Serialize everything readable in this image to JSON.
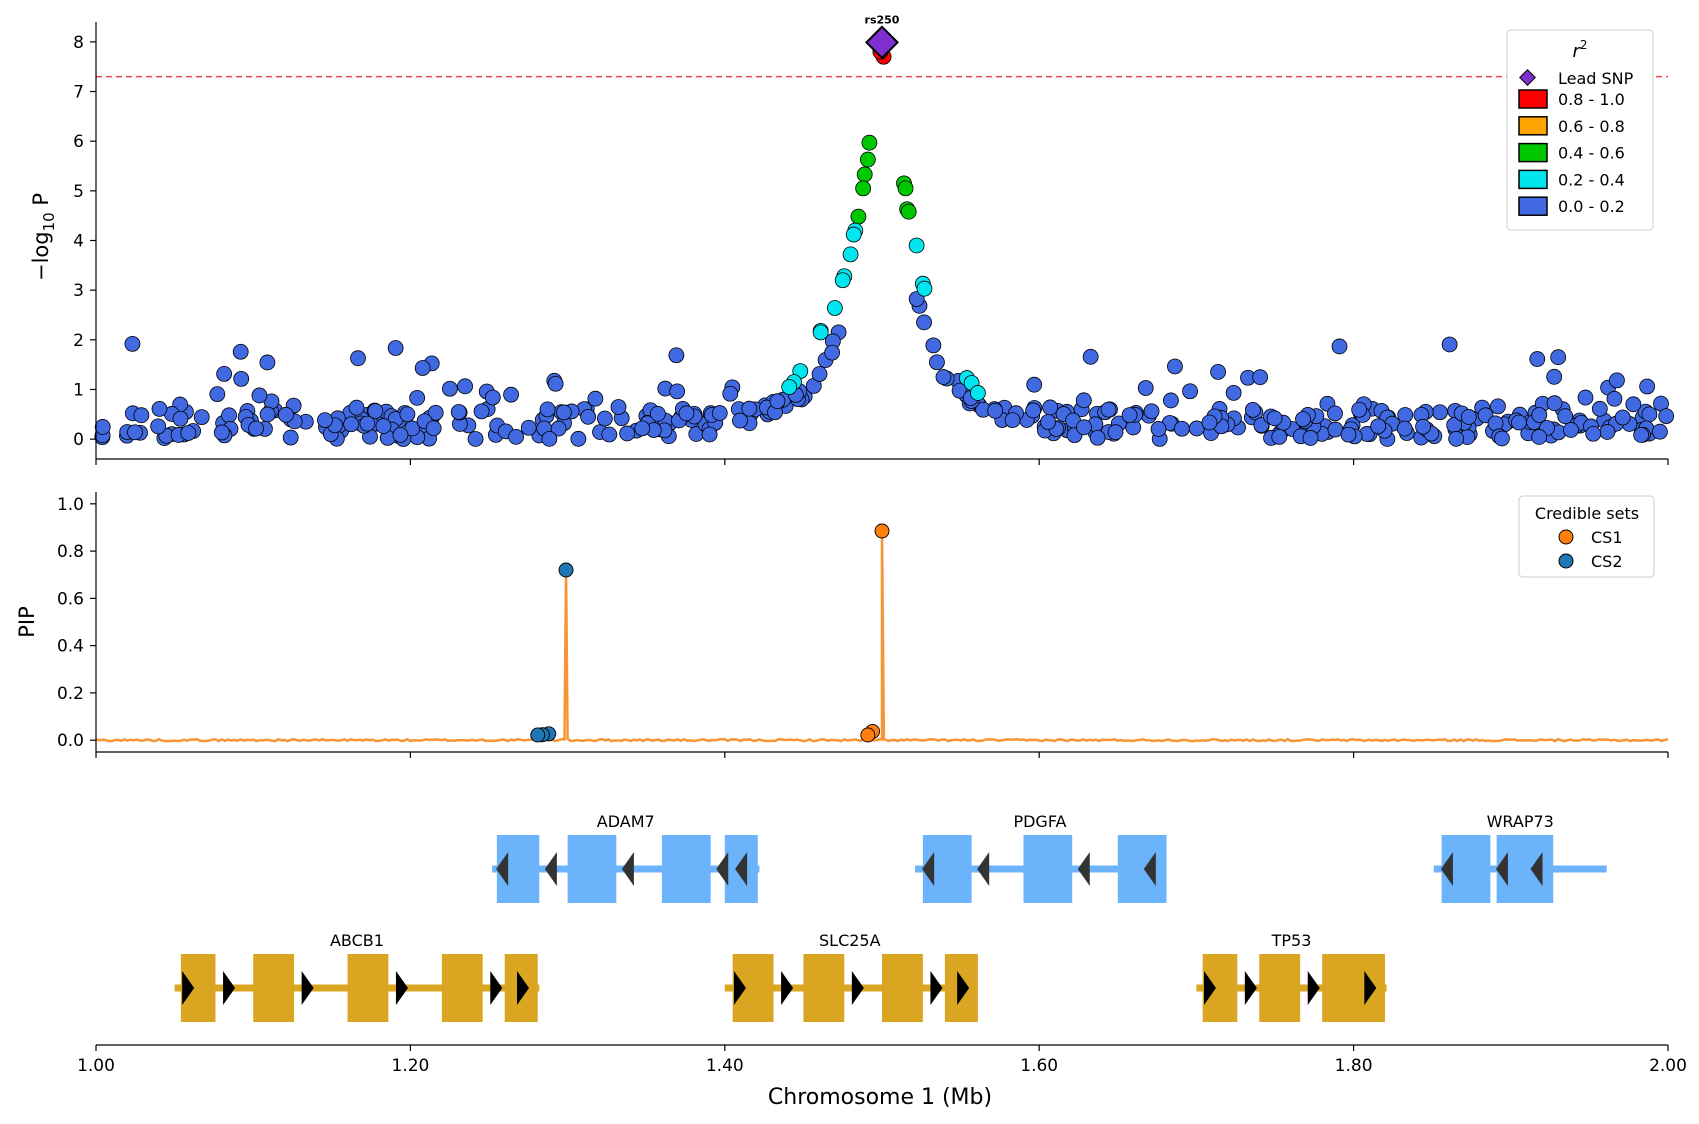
{
  "chart_data": {
    "panels": [
      {
        "type": "scatter",
        "id": "association",
        "ylabel_base": "−log",
        "ylabel_sub": "10",
        "ylabel_rest": " P",
        "ylim": [
          -0.4,
          8.4
        ],
        "yticks": [
          0,
          1,
          2,
          3,
          4,
          5,
          6,
          7,
          8
        ],
        "significance_threshold": 7.3,
        "threshold_color": "#e8474b",
        "lead_snp": {
          "label": "rs250",
          "x": 1.5,
          "y": 7.99,
          "color": "#7e2fd0"
        },
        "legend": {
          "title_base": "r",
          "title_sup": "2",
          "lead_label": "Lead SNP",
          "bins": [
            {
              "label": "0.8 - 1.0",
              "color": "#ff0000"
            },
            {
              "label": "0.6 - 0.8",
              "color": "#ffa500"
            },
            {
              "label": "0.4 - 0.6",
              "color": "#00c800"
            },
            {
              "label": "0.2 - 0.4",
              "color": "#00e5ee"
            },
            {
              "label": "0.0 - 0.2",
              "color": "#4169e1"
            }
          ]
        },
        "peak_points": [
          {
            "x": 1.501,
            "y": 7.7,
            "r2": "0.8-1.0"
          },
          {
            "x": 1.499,
            "y": 7.8,
            "r2": "0.8-1.0"
          },
          {
            "x": 1.492,
            "y": 5.97,
            "r2": "0.4-0.6"
          },
          {
            "x": 1.491,
            "y": 5.63,
            "r2": "0.4-0.6"
          },
          {
            "x": 1.489,
            "y": 5.33,
            "r2": "0.4-0.6"
          },
          {
            "x": 1.488,
            "y": 5.05,
            "r2": "0.4-0.6"
          },
          {
            "x": 1.485,
            "y": 4.48,
            "r2": "0.4-0.6"
          },
          {
            "x": 1.514,
            "y": 5.15,
            "r2": "0.4-0.6"
          },
          {
            "x": 1.515,
            "y": 5.05,
            "r2": "0.4-0.6"
          },
          {
            "x": 1.516,
            "y": 4.63,
            "r2": "0.4-0.6"
          },
          {
            "x": 1.517,
            "y": 4.58,
            "r2": "0.4-0.6"
          },
          {
            "x": 1.483,
            "y": 4.2,
            "r2": "0.2-0.4"
          },
          {
            "x": 1.482,
            "y": 4.12,
            "r2": "0.2-0.4"
          },
          {
            "x": 1.48,
            "y": 3.72,
            "r2": "0.2-0.4"
          },
          {
            "x": 1.476,
            "y": 3.28,
            "r2": "0.2-0.4"
          },
          {
            "x": 1.475,
            "y": 3.2,
            "r2": "0.2-0.4"
          },
          {
            "x": 1.47,
            "y": 2.64,
            "r2": "0.2-0.4"
          },
          {
            "x": 1.461,
            "y": 2.18,
            "r2": "0.2-0.4"
          },
          {
            "x": 1.461,
            "y": 2.15,
            "r2": "0.2-0.4"
          },
          {
            "x": 1.448,
            "y": 1.37,
            "r2": "0.2-0.4"
          },
          {
            "x": 1.444,
            "y": 1.15,
            "r2": "0.2-0.4"
          },
          {
            "x": 1.441,
            "y": 1.05,
            "r2": "0.2-0.4"
          },
          {
            "x": 1.522,
            "y": 3.9,
            "r2": "0.2-0.4"
          },
          {
            "x": 1.526,
            "y": 3.13,
            "r2": "0.2-0.4"
          },
          {
            "x": 1.527,
            "y": 3.03,
            "r2": "0.2-0.4"
          },
          {
            "x": 1.554,
            "y": 1.23,
            "r2": "0.2-0.4"
          },
          {
            "x": 1.557,
            "y": 1.13,
            "r2": "0.2-0.4"
          },
          {
            "x": 1.561,
            "y": 0.93,
            "r2": "0.2-0.4"
          }
        ],
        "background_snps": {
          "count": 460,
          "x_range": [
            1.0,
            2.0
          ],
          "y_range": [
            0.0,
            1.92
          ],
          "r2": "0.0-0.2"
        }
      },
      {
        "type": "line",
        "id": "fine-mapping",
        "ylabel": "PIP",
        "ylim": [
          -0.05,
          1.05
        ],
        "yticks": [
          0.0,
          0.2,
          0.4,
          0.6,
          0.8,
          1.0
        ],
        "ytick_labels": [
          "0.0",
          "0.2",
          "0.4",
          "0.6",
          "0.8",
          "1.0"
        ],
        "line_color": "#f79433",
        "peaks": [
          {
            "x": 1.299,
            "y": 0.72,
            "set": "CS2"
          },
          {
            "x": 1.5,
            "y": 0.885,
            "set": "CS1"
          }
        ],
        "credible_sets": [
          {
            "name": "CS1",
            "color": "#ff7f0e",
            "points": [
              {
                "x": 1.5,
                "y": 0.885
              },
              {
                "x": 1.494,
                "y": 0.037
              },
              {
                "x": 1.491,
                "y": 0.022
              }
            ]
          },
          {
            "name": "CS2",
            "color": "#1f77b4",
            "points": [
              {
                "x": 1.299,
                "y": 0.72
              },
              {
                "x": 1.288,
                "y": 0.027
              },
              {
                "x": 1.284,
                "y": 0.023
              },
              {
                "x": 1.281,
                "y": 0.022
              }
            ]
          }
        ],
        "legend_title": "Credible sets"
      },
      {
        "type": "genes",
        "id": "gene-track",
        "xlabel": "Chromosome 1 (Mb)",
        "xlim": [
          1.0,
          2.0
        ],
        "xticks": [
          1.0,
          1.2,
          1.4,
          1.6,
          1.8,
          2.0
        ],
        "xtick_labels": [
          "1.00",
          "1.20",
          "1.40",
          "1.60",
          "1.80",
          "2.00"
        ],
        "genes": [
          {
            "name": "ADAM7",
            "row": 0,
            "strand": "-",
            "color": "#6bb3fb",
            "start": 1.252,
            "end": 1.422,
            "exons": [
              [
                1.255,
                1.282
              ],
              [
                1.3,
                1.331
              ],
              [
                1.36,
                1.391
              ],
              [
                1.4,
                1.421
              ]
            ]
          },
          {
            "name": "PDGFA",
            "row": 0,
            "strand": "-",
            "color": "#6bb3fb",
            "start": 1.521,
            "end": 1.68,
            "exons": [
              [
                1.526,
                1.557
              ],
              [
                1.59,
                1.621
              ],
              [
                1.65,
                1.681
              ]
            ]
          },
          {
            "name": "WRAP73",
            "row": 0,
            "strand": "-",
            "color": "#6bb3fb",
            "start": 1.851,
            "end": 1.961,
            "exons": [
              [
                1.856,
                1.887
              ],
              [
                1.891,
                1.927
              ]
            ]
          },
          {
            "name": "ABCB1",
            "row": 1,
            "strand": "+",
            "color": "#daa520",
            "start": 1.05,
            "end": 1.282,
            "exons": [
              [
                1.054,
                1.076
              ],
              [
                1.1,
                1.126
              ],
              [
                1.16,
                1.186
              ],
              [
                1.22,
                1.246
              ],
              [
                1.26,
                1.281
              ]
            ]
          },
          {
            "name": "SLC25A",
            "row": 1,
            "strand": "+",
            "color": "#daa520",
            "start": 1.4,
            "end": 1.559,
            "exons": [
              [
                1.405,
                1.431
              ],
              [
                1.45,
                1.476
              ],
              [
                1.5,
                1.526
              ],
              [
                1.54,
                1.561
              ]
            ]
          },
          {
            "name": "TP53",
            "row": 1,
            "strand": "+",
            "color": "#daa520",
            "start": 1.7,
            "end": 1.821,
            "exons": [
              [
                1.704,
                1.726
              ],
              [
                1.74,
                1.766
              ],
              [
                1.78,
                1.82
              ]
            ]
          }
        ]
      }
    ]
  }
}
